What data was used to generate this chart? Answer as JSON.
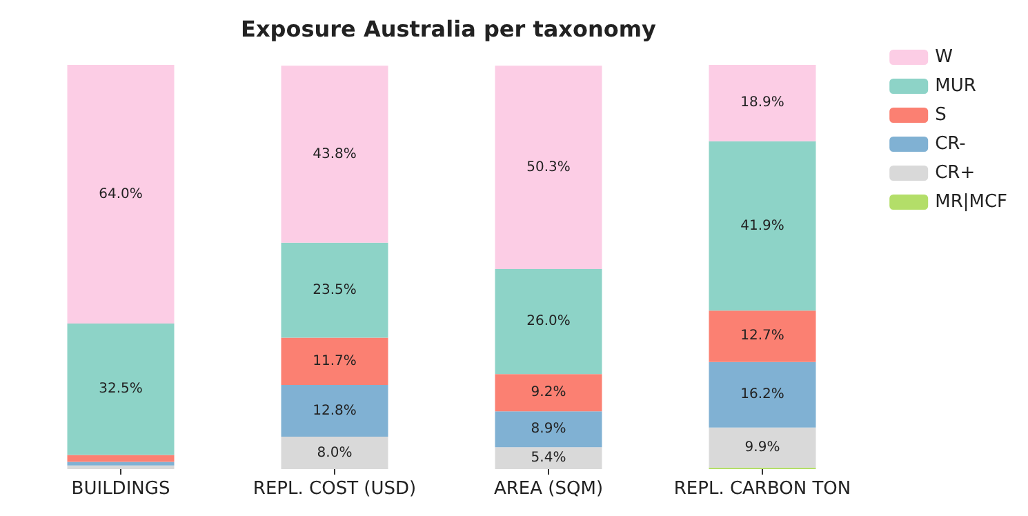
{
  "chart_data": {
    "type": "bar",
    "title": "Exposure Australia per taxonomy",
    "categories": [
      "BUILDINGS",
      "REPL. COST (USD)",
      "AREA (SQM)",
      "REPL. CARBON TON"
    ],
    "stacked": true,
    "ylim": [
      0,
      100
    ],
    "tick_labels": "x",
    "legend": "top right",
    "grid": false,
    "series": [
      {
        "name": "MR|MCF",
        "color": "#b3de69",
        "values": [
          0,
          0,
          0,
          0.4
        ],
        "value_labels": [
          null,
          null,
          null,
          null
        ]
      },
      {
        "name": "CR+",
        "color": "#d9d9d9",
        "values": [
          0.9,
          8.0,
          5.4,
          9.9
        ],
        "value_labels": [
          null,
          "8.0%",
          "5.4%",
          "9.9%"
        ]
      },
      {
        "name": "CR-",
        "color": "#80b1d3",
        "values": [
          0.9,
          12.8,
          8.9,
          16.2
        ],
        "value_labels": [
          null,
          "12.8%",
          "8.9%",
          "16.2%"
        ]
      },
      {
        "name": "S",
        "color": "#fb8072",
        "values": [
          1.7,
          11.7,
          9.2,
          12.7
        ],
        "value_labels": [
          null,
          "11.7%",
          "9.2%",
          "12.7%"
        ]
      },
      {
        "name": "MUR",
        "color": "#8dd3c7",
        "values": [
          32.5,
          23.5,
          26.0,
          41.9
        ],
        "value_labels": [
          "32.5%",
          "23.5%",
          "26.0%",
          "41.9%"
        ]
      },
      {
        "name": "W",
        "color": "#fccde5",
        "values": [
          64.0,
          43.8,
          50.3,
          18.9
        ],
        "value_labels": [
          "64.0%",
          "43.8%",
          "50.3%",
          "18.9%"
        ]
      }
    ]
  }
}
